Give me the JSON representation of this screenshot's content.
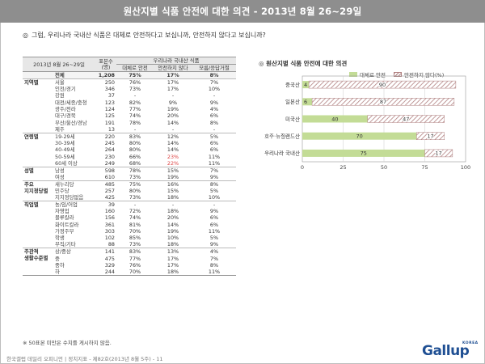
{
  "header": {
    "title": "원산지별 식품 안전에 대한 의견 - 2013년 8월 26~29일"
  },
  "question": {
    "mark": "◎",
    "text": "그럼, 우리나라 국내산 식품은 대체로 안전하다고 보십니까, 안전하지 않다고 보십니까?"
  },
  "table": {
    "headers": {
      "period": "2013년 8월 26~29일",
      "sample": "표본수 (명)",
      "group_header": "우리나라 국내산 식품",
      "col_safe": "대체로 안전",
      "col_unsafe": "안전하지 않다",
      "col_dk": "모름/응답거절"
    },
    "rows": [
      {
        "group": "",
        "label": "전체",
        "n": "1,208",
        "safe": "75%",
        "unsafe": "17%",
        "dk": "8%",
        "total": true
      },
      {
        "group": "지역별",
        "label": "서울",
        "n": "250",
        "safe": "76%",
        "unsafe": "17%",
        "dk": "7%",
        "sep": true
      },
      {
        "group": "",
        "label": "인천/경기",
        "n": "346",
        "safe": "73%",
        "unsafe": "17%",
        "dk": "10%"
      },
      {
        "group": "",
        "label": "강원",
        "n": "37",
        "safe": "-",
        "unsafe": "-",
        "dk": "-"
      },
      {
        "group": "",
        "label": "대전/세종/충청",
        "n": "123",
        "safe": "82%",
        "unsafe": "9%",
        "dk": "9%"
      },
      {
        "group": "",
        "label": "광주/전라",
        "n": "124",
        "safe": "77%",
        "unsafe": "19%",
        "dk": "4%"
      },
      {
        "group": "",
        "label": "대구/경북",
        "n": "125",
        "safe": "74%",
        "unsafe": "20%",
        "dk": "6%"
      },
      {
        "group": "",
        "label": "부산/울산/경남",
        "n": "191",
        "safe": "78%",
        "unsafe": "14%",
        "dk": "8%"
      },
      {
        "group": "",
        "label": "제주",
        "n": "13",
        "safe": "-",
        "unsafe": "-",
        "dk": "-"
      },
      {
        "group": "연령별",
        "label": "19-29세",
        "n": "220",
        "safe": "83%",
        "unsafe": "12%",
        "dk": "5%",
        "sep": true
      },
      {
        "group": "",
        "label": "30-39세",
        "n": "245",
        "safe": "80%",
        "unsafe": "14%",
        "dk": "6%"
      },
      {
        "group": "",
        "label": "40-49세",
        "n": "264",
        "safe": "80%",
        "unsafe": "14%",
        "dk": "6%"
      },
      {
        "group": "",
        "label": "50-59세",
        "n": "230",
        "safe": "66%",
        "unsafe": "23%",
        "dk": "11%",
        "hi": true
      },
      {
        "group": "",
        "label": "60세 이상",
        "n": "249",
        "safe": "68%",
        "unsafe": "22%",
        "dk": "11%",
        "hi": true
      },
      {
        "group": "성별",
        "label": "남성",
        "n": "598",
        "safe": "78%",
        "unsafe": "15%",
        "dk": "7%",
        "sep": true
      },
      {
        "group": "",
        "label": "여성",
        "n": "610",
        "safe": "73%",
        "unsafe": "19%",
        "dk": "9%"
      },
      {
        "group": "주요",
        "label": "새누리당",
        "n": "485",
        "safe": "75%",
        "unsafe": "16%",
        "dk": "8%",
        "sep": true
      },
      {
        "group": "지지정당별",
        "label": "민주당",
        "n": "257",
        "safe": "80%",
        "unsafe": "15%",
        "dk": "5%"
      },
      {
        "group": "",
        "label": "지지정당없음",
        "n": "425",
        "safe": "73%",
        "unsafe": "18%",
        "dk": "10%"
      },
      {
        "group": "직업별",
        "label": "농/임/어업",
        "n": "39",
        "safe": "-",
        "unsafe": "-",
        "dk": "-",
        "sep": true
      },
      {
        "group": "",
        "label": "자영업",
        "n": "160",
        "safe": "72%",
        "unsafe": "18%",
        "dk": "9%"
      },
      {
        "group": "",
        "label": "블루칼라",
        "n": "156",
        "safe": "74%",
        "unsafe": "20%",
        "dk": "6%"
      },
      {
        "group": "",
        "label": "화이트칼라",
        "n": "361",
        "safe": "81%",
        "unsafe": "14%",
        "dk": "6%"
      },
      {
        "group": "",
        "label": "가정주부",
        "n": "303",
        "safe": "70%",
        "unsafe": "19%",
        "dk": "11%"
      },
      {
        "group": "",
        "label": "학생",
        "n": "102",
        "safe": "85%",
        "unsafe": "10%",
        "dk": "5%"
      },
      {
        "group": "",
        "label": "무직/기타",
        "n": "88",
        "safe": "73%",
        "unsafe": "18%",
        "dk": "9%"
      },
      {
        "group": "주관적",
        "label": "상/중상",
        "n": "141",
        "safe": "83%",
        "unsafe": "13%",
        "dk": "4%",
        "sep": true
      },
      {
        "group": "생활수준별",
        "label": "중",
        "n": "475",
        "safe": "77%",
        "unsafe": "17%",
        "dk": "7%"
      },
      {
        "group": "",
        "label": "중하",
        "n": "329",
        "safe": "76%",
        "unsafe": "17%",
        "dk": "8%"
      },
      {
        "group": "",
        "label": "하",
        "n": "244",
        "safe": "70%",
        "unsafe": "18%",
        "dk": "11%",
        "last": true
      }
    ]
  },
  "note": "※ 50표본 미만은 수치를 게시하지 않음.",
  "footer": "한국갤럽 데일리 오피니언 | 정치지표 - 제82호(2013년 8월 5주) - 11",
  "logo": {
    "text": "Gallup",
    "sub": "KOREA"
  },
  "chart_title": "◎ 원산지별 식품 안전에 대한 의견",
  "legend": {
    "safe": "대체로 안전",
    "unsafe": "안전하지 않다(%)"
  },
  "colors": {
    "safe": "#c3dc96",
    "unsafe_hatch": "#b08080",
    "header_bg": "#8e8e8e"
  },
  "chart_data": {
    "type": "bar",
    "orientation": "horizontal",
    "stacked": true,
    "title": "원산지별 식품 안전에 대한 의견",
    "categories": [
      "중국산",
      "일본산",
      "미국산",
      "호주·뉴질랜드산",
      "우리나라 국내산"
    ],
    "series": [
      {
        "name": "대체로 안전",
        "values": [
          4,
          6,
          40,
          70,
          75
        ]
      },
      {
        "name": "안전하지 않다(%)",
        "values": [
          90,
          87,
          47,
          17,
          17
        ]
      }
    ],
    "xlim": [
      0,
      100
    ],
    "xticks": [
      0,
      25,
      50,
      75,
      100
    ],
    "legend_position": "top-right"
  }
}
